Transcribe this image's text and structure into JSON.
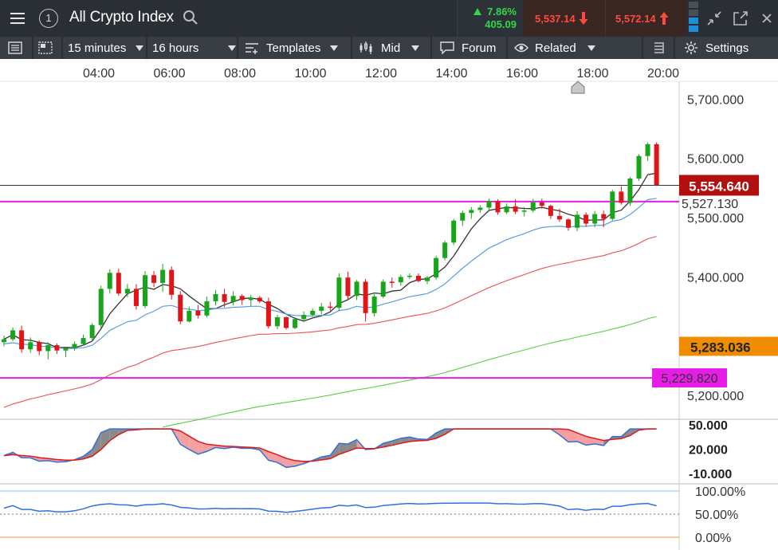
{
  "header": {
    "title": "All Crypto Index",
    "change_pct": "7.86%",
    "change_abs": "405.09",
    "sell_price": "5,537.14",
    "buy_price": "5,572.14"
  },
  "toolbar": {
    "interval": "15 minutes",
    "range": "16 hours",
    "templates_label": "Templates",
    "price_type": "Mid",
    "forum_label": "Forum",
    "related_label": "Related",
    "settings_label": "Settings"
  },
  "colors": {
    "up": "#17a61a",
    "down": "#e0151a",
    "line_black": "#333333",
    "line_blue": "#5b9be8",
    "line_red": "#f05050",
    "line_green": "#5ccd4a",
    "hline": "#e61de6",
    "last_price_tag": "#b30f0f",
    "level_tag": "#f08c00"
  },
  "chart_data": [
    {
      "type": "candlestick",
      "x_ticks": [
        "04:00",
        "06:00",
        "08:00",
        "10:00",
        "12:00",
        "14:00",
        "16:00",
        "18:00",
        "20:00"
      ],
      "y_ticks": [
        "5,700.000",
        "5,600.000",
        "5,500.000",
        "5,400.000",
        "5,200.000"
      ],
      "ylim": [
        5160,
        5730
      ],
      "last_price": 5554.64,
      "last_price_label": "5,554.640",
      "price_lines": [
        {
          "value": 5527.13,
          "label": "5,527.130"
        },
        {
          "value": 5229.82,
          "label": "5,229.820"
        }
      ],
      "level_label": {
        "value": 5283.036,
        "label": "5,283.036"
      },
      "candles": [
        [
          5290,
          5301,
          5283,
          5295
        ],
        [
          5295,
          5315,
          5292,
          5310
        ],
        [
          5310,
          5318,
          5272,
          5278
        ],
        [
          5278,
          5298,
          5272,
          5290
        ],
        [
          5290,
          5293,
          5268,
          5275
        ],
        [
          5275,
          5290,
          5261,
          5285
        ],
        [
          5285,
          5288,
          5270,
          5276
        ],
        [
          5276,
          5282,
          5265,
          5280
        ],
        [
          5280,
          5291,
          5276,
          5287
        ],
        [
          5287,
          5303,
          5284,
          5297
        ],
        [
          5297,
          5322,
          5291,
          5319
        ],
        [
          5319,
          5385,
          5314,
          5380
        ],
        [
          5380,
          5413,
          5372,
          5407
        ],
        [
          5407,
          5414,
          5368,
          5372
        ],
        [
          5372,
          5388,
          5366,
          5380
        ],
        [
          5380,
          5388,
          5345,
          5351
        ],
        [
          5351,
          5410,
          5347,
          5403
        ],
        [
          5403,
          5410,
          5383,
          5390
        ],
        [
          5390,
          5422,
          5375,
          5412
        ],
        [
          5412,
          5418,
          5362,
          5370
        ],
        [
          5370,
          5376,
          5320,
          5325
        ],
        [
          5325,
          5350,
          5323,
          5343
        ],
        [
          5343,
          5353,
          5330,
          5335
        ],
        [
          5335,
          5367,
          5332,
          5359
        ],
        [
          5359,
          5378,
          5352,
          5371
        ],
        [
          5371,
          5380,
          5349,
          5358
        ],
        [
          5358,
          5376,
          5352,
          5368
        ],
        [
          5368,
          5371,
          5353,
          5361
        ],
        [
          5361,
          5370,
          5351,
          5365
        ],
        [
          5365,
          5368,
          5356,
          5359
        ],
        [
          5359,
          5365,
          5313,
          5317
        ],
        [
          5317,
          5336,
          5312,
          5332
        ],
        [
          5332,
          5334,
          5311,
          5314
        ],
        [
          5314,
          5332,
          5312,
          5329
        ],
        [
          5329,
          5342,
          5324,
          5336
        ],
        [
          5336,
          5347,
          5333,
          5343
        ],
        [
          5343,
          5356,
          5337,
          5350
        ],
        [
          5350,
          5358,
          5343,
          5348
        ],
        [
          5348,
          5406,
          5343,
          5399
        ],
        [
          5399,
          5409,
          5363,
          5368
        ],
        [
          5368,
          5395,
          5361,
          5392
        ],
        [
          5392,
          5397,
          5325,
          5339
        ],
        [
          5339,
          5371,
          5333,
          5367
        ],
        [
          5367,
          5396,
          5364,
          5392
        ],
        [
          5392,
          5399,
          5382,
          5391
        ],
        [
          5391,
          5404,
          5385,
          5400
        ],
        [
          5400,
          5406,
          5397,
          5402
        ],
        [
          5402,
          5406,
          5391,
          5393
        ],
        [
          5393,
          5402,
          5388,
          5399
        ],
        [
          5399,
          5436,
          5395,
          5432
        ],
        [
          5432,
          5461,
          5428,
          5458
        ],
        [
          5458,
          5498,
          5454,
          5495
        ],
        [
          5495,
          5512,
          5486,
          5508
        ],
        [
          5508,
          5518,
          5498,
          5513
        ],
        [
          5513,
          5521,
          5508,
          5517
        ],
        [
          5517,
          5532,
          5512,
          5528
        ],
        [
          5528,
          5531,
          5505,
          5509
        ],
        [
          5509,
          5524,
          5506,
          5519
        ],
        [
          5519,
          5531,
          5506,
          5510
        ],
        [
          5510,
          5518,
          5502,
          5512
        ],
        [
          5512,
          5532,
          5509,
          5526
        ],
        [
          5526,
          5532,
          5515,
          5520
        ],
        [
          5520,
          5522,
          5498,
          5503
        ],
        [
          5503,
          5515,
          5493,
          5497
        ],
        [
          5497,
          5499,
          5478,
          5483
        ],
        [
          5483,
          5511,
          5477,
          5505
        ],
        [
          5505,
          5509,
          5485,
          5490
        ],
        [
          5490,
          5511,
          5484,
          5506
        ],
        [
          5506,
          5512,
          5484,
          5498
        ],
        [
          5498,
          5547,
          5495,
          5544
        ],
        [
          5544,
          5553,
          5522,
          5525
        ],
        [
          5525,
          5569,
          5520,
          5566
        ],
        [
          5566,
          5607,
          5562,
          5604
        ],
        [
          5604,
          5627,
          5596,
          5624
        ],
        [
          5624,
          5627,
          5554,
          5555
        ]
      ]
    },
    {
      "type": "line",
      "name": "oscillator",
      "y_ticks": [
        "50.000",
        "20.000",
        "-10.000"
      ],
      "ylim": [
        -20,
        55
      ]
    },
    {
      "type": "line",
      "name": "percent oscillator",
      "y_ticks": [
        "100.00%",
        "50.00%",
        "0.00%"
      ],
      "ylim": [
        0,
        100
      ]
    }
  ]
}
